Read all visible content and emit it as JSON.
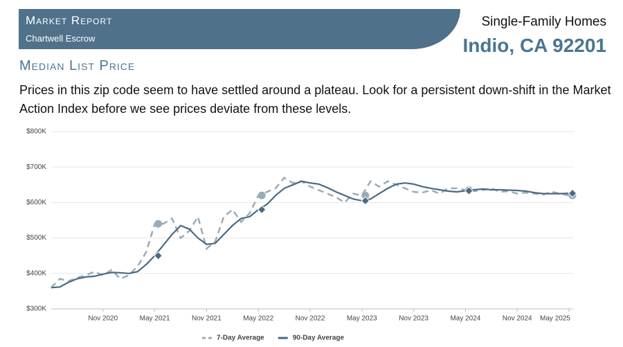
{
  "header": {
    "title": "Market Report",
    "subtitle": "Chartwell Escrow",
    "property_type": "Single-Family Homes",
    "location": "Indio, CA 92201"
  },
  "section_title": "Median List Price",
  "description": "Prices in this zip code seem to have settled around a plateau. Look for a persistent down-shift in the Market Action Index before we see prices deviate from these levels.",
  "chart_data": {
    "type": "line",
    "x": [
      "2020-05",
      "2020-06",
      "2020-07",
      "2020-08",
      "2020-09",
      "2020-10",
      "2020-11",
      "2020-12",
      "2021-01",
      "2021-02",
      "2021-03",
      "2021-04",
      "2021-05",
      "2021-06",
      "2021-07",
      "2021-08",
      "2021-09",
      "2021-10",
      "2021-11",
      "2021-12",
      "2022-01",
      "2022-02",
      "2022-03",
      "2022-04",
      "2022-05",
      "2022-06",
      "2022-07",
      "2022-08",
      "2022-09",
      "2022-10",
      "2022-11",
      "2022-12",
      "2023-01",
      "2023-02",
      "2023-03",
      "2023-04",
      "2023-05",
      "2023-06",
      "2023-07",
      "2023-08",
      "2023-09",
      "2023-10",
      "2023-11",
      "2023-12",
      "2024-01",
      "2024-02",
      "2024-03",
      "2024-04",
      "2024-05",
      "2024-06",
      "2024-07",
      "2024-08",
      "2024-09",
      "2024-10",
      "2024-11",
      "2024-12",
      "2025-01",
      "2025-02",
      "2025-03",
      "2025-04",
      "2025-05"
    ],
    "series": [
      {
        "name": "7-Day Average",
        "color": "#9aabb8",
        "dashed": true,
        "values": [
          360000,
          385000,
          378000,
          388000,
          395000,
          405000,
          395000,
          410000,
          385000,
          395000,
          420000,
          460000,
          540000,
          540000,
          555000,
          500000,
          520000,
          560000,
          470000,
          490000,
          560000,
          580000,
          545000,
          570000,
          620000,
          630000,
          640000,
          670000,
          655000,
          660000,
          645000,
          635000,
          625000,
          615000,
          600000,
          625000,
          620000,
          660000,
          645000,
          660000,
          650000,
          640000,
          630000,
          628000,
          635000,
          625000,
          640000,
          640000,
          635000,
          632000,
          635000,
          640000,
          630000,
          632000,
          625000,
          628000,
          625000,
          622000,
          630000,
          625000,
          620000
        ]
      },
      {
        "name": "90-Day Average",
        "color": "#4a6a82",
        "dashed": false,
        "values": [
          360000,
          362000,
          375000,
          385000,
          390000,
          392000,
          398000,
          403000,
          402000,
          400000,
          405000,
          425000,
          450000,
          480000,
          510000,
          535000,
          525000,
          500000,
          482000,
          485000,
          510000,
          535000,
          555000,
          560000,
          580000,
          595000,
          620000,
          640000,
          650000,
          660000,
          655000,
          652000,
          642000,
          630000,
          620000,
          610000,
          605000,
          610000,
          625000,
          640000,
          652000,
          655000,
          652000,
          645000,
          640000,
          636000,
          632000,
          630000,
          633000,
          636000,
          638000,
          636000,
          636000,
          635000,
          634000,
          632000,
          628000,
          625000,
          625000,
          625000,
          626000
        ]
      }
    ],
    "xlim": [
      "2020-05",
      "2025-05"
    ],
    "xticks": [
      {
        "value": "2020-11",
        "label": "Nov 2020"
      },
      {
        "value": "2021-05",
        "label": "May 2021"
      },
      {
        "value": "2021-11",
        "label": "Nov 2021"
      },
      {
        "value": "2022-05",
        "label": "May 2022"
      },
      {
        "value": "2022-11",
        "label": "Nov 2022"
      },
      {
        "value": "2023-05",
        "label": "May 2023"
      },
      {
        "value": "2023-11",
        "label": "Nov 2023"
      },
      {
        "value": "2024-05",
        "label": "May 2024"
      },
      {
        "value": "2024-11",
        "label": "Nov 2024"
      },
      {
        "value": "2025-05",
        "label": "May 2025"
      }
    ],
    "ylim": [
      300000,
      800000
    ],
    "yticks": [
      {
        "value": 300000,
        "label": "$300K"
      },
      {
        "value": 400000,
        "label": "$400K"
      },
      {
        "value": 500000,
        "label": "$500K"
      },
      {
        "value": 600000,
        "label": "$600K"
      },
      {
        "value": 700000,
        "label": "$700K"
      },
      {
        "value": 800000,
        "label": "$800K"
      }
    ],
    "grid": true,
    "legend": "bottom"
  }
}
